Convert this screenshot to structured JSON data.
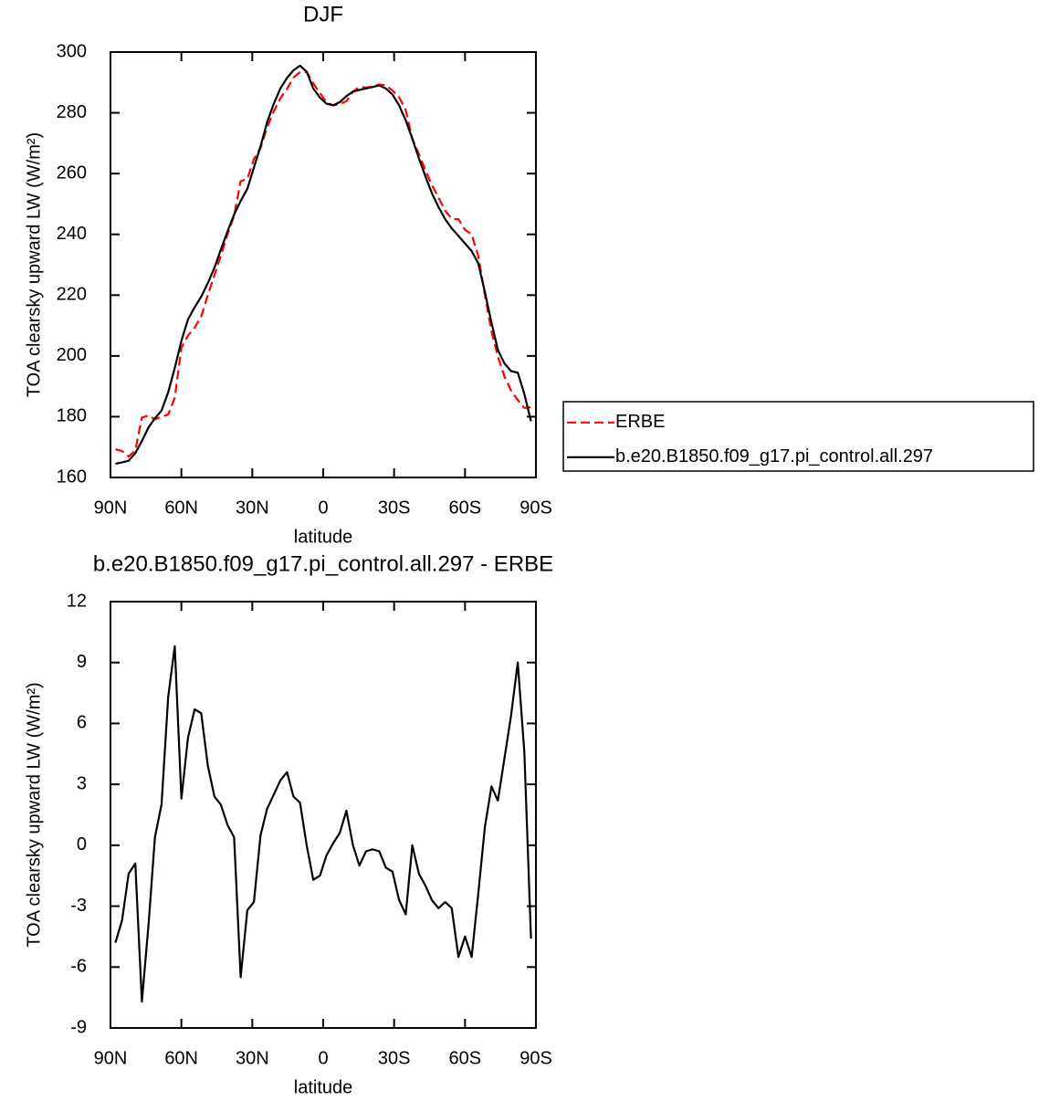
{
  "chart_data": [
    {
      "type": "line",
      "title": "DJF",
      "xlabel": "latitude",
      "ylabel": "TOA clearsky upward LW (W/m²)",
      "x": [
        87.9,
        85.1,
        82.3,
        79.5,
        76.7,
        73.9,
        71.2,
        68.4,
        65.6,
        62.8,
        60.0,
        57.2,
        54.4,
        51.6,
        48.8,
        46.0,
        43.3,
        40.5,
        37.7,
        34.9,
        32.1,
        29.3,
        26.5,
        23.7,
        20.9,
        18.1,
        15.3,
        12.6,
        9.8,
        7.0,
        4.2,
        1.4,
        -1.4,
        -4.2,
        -7.0,
        -9.8,
        -12.6,
        -15.3,
        -18.1,
        -20.9,
        -23.7,
        -26.5,
        -29.3,
        -32.1,
        -34.9,
        -37.7,
        -40.5,
        -43.3,
        -46.0,
        -48.8,
        -51.6,
        -54.4,
        -57.2,
        -60.0,
        -62.8,
        -65.6,
        -68.4,
        -71.2,
        -73.9,
        -76.7,
        -79.5,
        -82.3,
        -85.1,
        -87.9
      ],
      "series": [
        {
          "name": "ERBE",
          "color": "#ff0000",
          "dash": true,
          "values": [
            169.3,
            168.7,
            166.9,
            168.9,
            179.7,
            180.4,
            179.1,
            180.0,
            180.7,
            186.2,
            202.7,
            206.7,
            209.3,
            213.0,
            220.1,
            226.6,
            233.0,
            240.0,
            246.1,
            257.5,
            258.2,
            264.8,
            268.5,
            275.2,
            280.5,
            284.8,
            287.9,
            291.6,
            293.4,
            293.5,
            289.7,
            286.5,
            283.5,
            282.4,
            282.9,
            283.8,
            287.0,
            288.5,
            288.3,
            288.7,
            289.3,
            289.1,
            287.3,
            285.2,
            280.9,
            271.5,
            266.4,
            261.0,
            256.2,
            252.1,
            247.8,
            245.1,
            245.0,
            241.5,
            240.0,
            232.9,
            220.1,
            208.1,
            199.8,
            193.2,
            188.6,
            185.5,
            182.9,
            183.1
          ]
        },
        {
          "name": "b.e20.B1850.f09_g17.pi_control.all.297",
          "color": "#000000",
          "dash": false,
          "values": [
            164.5,
            165,
            165.5,
            168,
            172,
            176.5,
            179.5,
            182,
            188,
            196,
            205,
            212,
            216,
            219.5,
            224,
            229,
            235,
            241,
            246.5,
            251,
            255,
            262,
            269,
            277,
            283,
            288,
            291.5,
            294,
            295.5,
            293.5,
            288,
            285,
            283,
            282.5,
            283.5,
            285.5,
            287,
            287.5,
            288,
            288.5,
            289,
            288,
            286,
            282.5,
            277.5,
            271.5,
            265,
            259,
            253.5,
            249,
            245,
            242,
            239.5,
            237,
            234.5,
            230.5,
            221,
            211,
            202,
            197.5,
            195,
            194.5,
            187.5,
            178.5
          ]
        }
      ],
      "xlim": [
        90,
        -90
      ],
      "xticks": [
        {
          "value": 90,
          "label": "90N"
        },
        {
          "value": 60,
          "label": "60N"
        },
        {
          "value": 30,
          "label": "30N"
        },
        0,
        {
          "value": -30,
          "label": "30S"
        },
        {
          "value": -60,
          "label": "60S"
        },
        {
          "value": -90,
          "label": "90S"
        }
      ],
      "ylim": [
        160,
        300
      ],
      "yticks": [
        160,
        180,
        200,
        220,
        240,
        260,
        280,
        300
      ],
      "legend": "right"
    },
    {
      "type": "line",
      "title": "b.e20.B1850.f09_g17.pi_control.all.297 - ERBE",
      "xlabel": "latitude",
      "ylabel": "TOA clearsky upward LW (W/m²)",
      "x": [
        87.9,
        85.1,
        82.3,
        79.5,
        76.7,
        73.9,
        71.2,
        68.4,
        65.6,
        62.8,
        60.0,
        57.2,
        54.4,
        51.6,
        48.8,
        46.0,
        43.3,
        40.5,
        37.7,
        34.9,
        32.1,
        29.3,
        26.5,
        23.7,
        20.9,
        18.1,
        15.3,
        12.6,
        9.8,
        7.0,
        4.2,
        1.4,
        -1.4,
        -4.2,
        -7.0,
        -9.8,
        -12.6,
        -15.3,
        -18.1,
        -20.9,
        -23.7,
        -26.5,
        -29.3,
        -32.1,
        -34.9,
        -37.7,
        -40.5,
        -43.3,
        -46.0,
        -48.8,
        -51.6,
        -54.4,
        -57.2,
        -60.0,
        -62.8,
        -65.6,
        -68.4,
        -71.2,
        -73.9,
        -76.7,
        -79.5,
        -82.3,
        -85.1,
        -87.9
      ],
      "series": [
        {
          "color": "#000000",
          "dash": false,
          "values": [
            -4.8,
            -3.7,
            -1.4,
            -0.9,
            -7.7,
            -3.9,
            0.4,
            2.0,
            7.3,
            9.8,
            2.3,
            5.3,
            6.7,
            6.5,
            3.9,
            2.4,
            2.0,
            1.0,
            0.4,
            -6.5,
            -3.2,
            -2.8,
            0.5,
            1.8,
            2.5,
            3.2,
            3.6,
            2.4,
            2.1,
            0.0,
            -1.7,
            -1.5,
            -0.5,
            0.1,
            0.6,
            1.7,
            0.0,
            -1.0,
            -0.3,
            -0.2,
            -0.3,
            -1.1,
            -1.3,
            -2.7,
            -3.4,
            0.0,
            -1.4,
            -2.0,
            -2.7,
            -3.1,
            -2.8,
            -3.1,
            -5.5,
            -4.5,
            -5.5,
            -2.4,
            0.9,
            2.9,
            2.2,
            4.3,
            6.4,
            9.0,
            4.6,
            -4.6
          ]
        }
      ],
      "xlim": [
        90,
        -90
      ],
      "xticks": [
        {
          "value": 90,
          "label": "90N"
        },
        {
          "value": 60,
          "label": "60N"
        },
        {
          "value": 30,
          "label": "30N"
        },
        0,
        {
          "value": -30,
          "label": "30S"
        },
        {
          "value": -60,
          "label": "60S"
        },
        {
          "value": -90,
          "label": "90S"
        }
      ],
      "ylim": [
        -9,
        12
      ],
      "yticks": [
        -9,
        -6,
        -3,
        0,
        3,
        6,
        9,
        12
      ]
    }
  ]
}
